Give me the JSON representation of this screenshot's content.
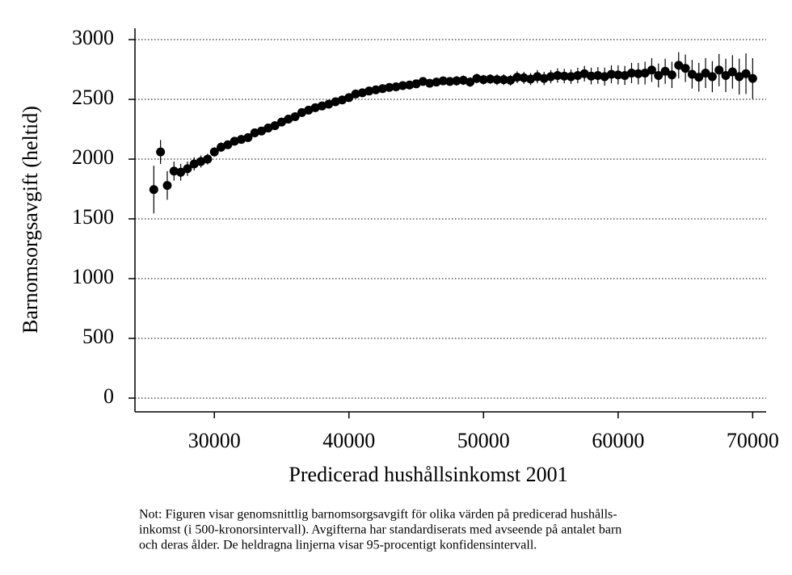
{
  "chart_data": {
    "type": "errorbar-scatter",
    "ylabel": "Barnomsorgsavgift (heltid)",
    "xlabel": "Predicerad hushållsinkomst 2001",
    "note": [
      "Not: Figuren visar genomsnittlig barnomsorgsavgift för olika värden på predicerad hushålls-",
      "inkomst (i 500-kronorsintervall). Avgifterna har standardiserats med avseende på antalet barn",
      "och deras ålder. De heldragna linjerna visar 95-procentigt konfidensintervall."
    ],
    "xlim": [
      24100,
      71000
    ],
    "xticks": [
      30000,
      40000,
      50000,
      60000,
      70000
    ],
    "ylim": [
      -115,
      3095
    ],
    "yticks": [
      0,
      500,
      1000,
      1500,
      2000,
      2500,
      3000
    ],
    "grid": true,
    "color": "#000000",
    "x": [
      25500,
      26000,
      26500,
      27000,
      27500,
      28000,
      28500,
      29000,
      29500,
      30000,
      30500,
      31000,
      31500,
      32000,
      32500,
      33000,
      33500,
      34000,
      34500,
      35000,
      35500,
      36000,
      36500,
      37000,
      37500,
      38000,
      38500,
      39000,
      39500,
      40000,
      40500,
      41000,
      41500,
      42000,
      42500,
      43000,
      43500,
      44000,
      44500,
      45000,
      45500,
      46000,
      46500,
      47000,
      47500,
      48000,
      48500,
      49000,
      49500,
      50000,
      50500,
      51000,
      51500,
      52000,
      52500,
      53000,
      53500,
      54000,
      54500,
      55000,
      55500,
      56000,
      56500,
      57000,
      57500,
      58000,
      58500,
      59000,
      59500,
      60000,
      60500,
      61000,
      61500,
      62000,
      62500,
      63000,
      63500,
      64000,
      64500,
      65000,
      65500,
      66000,
      66500,
      67000,
      67500,
      68000,
      68500,
      69000,
      69500,
      70000
    ],
    "values": [
      1745,
      2060,
      1780,
      1900,
      1890,
      1920,
      1960,
      1980,
      2000,
      2060,
      2100,
      2120,
      2150,
      2165,
      2180,
      2220,
      2235,
      2260,
      2280,
      2310,
      2335,
      2355,
      2390,
      2410,
      2430,
      2445,
      2460,
      2480,
      2495,
      2515,
      2545,
      2555,
      2570,
      2580,
      2590,
      2600,
      2605,
      2615,
      2620,
      2630,
      2650,
      2635,
      2645,
      2655,
      2650,
      2655,
      2660,
      2645,
      2675,
      2665,
      2670,
      2665,
      2665,
      2660,
      2685,
      2680,
      2670,
      2690,
      2675,
      2690,
      2700,
      2695,
      2690,
      2700,
      2715,
      2695,
      2700,
      2690,
      2710,
      2705,
      2700,
      2720,
      2715,
      2720,
      2745,
      2700,
      2735,
      2705,
      2785,
      2760,
      2710,
      2685,
      2720,
      2690,
      2745,
      2700,
      2730,
      2690,
      2715,
      2675
    ],
    "errors": [
      200,
      100,
      120,
      80,
      70,
      60,
      55,
      50,
      45,
      40,
      40,
      35,
      35,
      30,
      30,
      30,
      30,
      30,
      30,
      30,
      30,
      30,
      30,
      30,
      30,
      30,
      30,
      30,
      30,
      30,
      30,
      30,
      30,
      30,
      30,
      30,
      30,
      30,
      30,
      30,
      35,
      35,
      35,
      35,
      35,
      40,
      40,
      40,
      40,
      40,
      40,
      45,
      45,
      45,
      50,
      50,
      50,
      55,
      55,
      55,
      60,
      60,
      60,
      65,
      65,
      70,
      70,
      75,
      75,
      80,
      80,
      85,
      90,
      95,
      100,
      100,
      105,
      110,
      110,
      115,
      120,
      120,
      125,
      130,
      135,
      140,
      140,
      150,
      170,
      170
    ]
  }
}
